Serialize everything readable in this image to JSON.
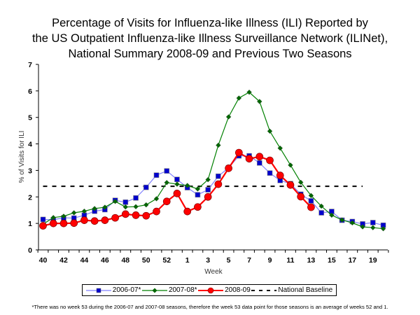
{
  "chart_data": {
    "type": "line",
    "title": [
      "Percentage of Visits for Influenza-like Illness (ILI) Reported by",
      "the US Outpatient Influenza-like Illness Surveillance Network (ILINet),",
      "National Summary 2008-09 and Previous Two Seasons"
    ],
    "xlabel": "Week",
    "ylabel": "% of Visits for ILI",
    "ylim": [
      0,
      7
    ],
    "yticks": [
      0,
      1,
      2,
      3,
      4,
      5,
      6,
      7
    ],
    "x": [
      "40",
      "41",
      "42",
      "43",
      "44",
      "45",
      "46",
      "47",
      "48",
      "49",
      "50",
      "51",
      "52",
      "53",
      "1",
      "2",
      "3",
      "4",
      "5",
      "6",
      "7",
      "8",
      "9",
      "10",
      "11",
      "12",
      "13",
      "14",
      "15",
      "16",
      "17",
      "18",
      "19",
      "20"
    ],
    "xtick_labels": [
      "40",
      "42",
      "44",
      "46",
      "48",
      "50",
      "52",
      "1",
      "3",
      "5",
      "7",
      "9",
      "11",
      "13",
      "15",
      "17",
      "19"
    ],
    "series": [
      {
        "name": "2006-07*",
        "color": "#8080ff",
        "marker_color": "#0000cc",
        "marker": "square",
        "values": [
          1.15,
          1.14,
          1.21,
          1.2,
          1.31,
          1.46,
          1.52,
          1.87,
          1.8,
          1.96,
          2.36,
          2.82,
          2.98,
          2.66,
          2.35,
          2.08,
          2.27,
          2.78,
          3.1,
          3.55,
          3.55,
          3.28,
          2.9,
          2.62,
          2.5,
          2.1,
          1.85,
          1.4,
          1.45,
          1.12,
          1.07,
          0.98,
          1.03,
          0.93
        ]
      },
      {
        "name": "2007-08*",
        "color": "#008000",
        "marker_color": "#006600",
        "marker": "diamond",
        "values": [
          0.97,
          1.22,
          1.27,
          1.4,
          1.46,
          1.56,
          1.61,
          1.83,
          1.62,
          1.63,
          1.7,
          1.93,
          2.54,
          2.48,
          2.43,
          2.3,
          2.65,
          3.95,
          5.02,
          5.73,
          5.95,
          5.6,
          4.48,
          3.84,
          3.2,
          2.55,
          2.05,
          1.65,
          1.31,
          1.13,
          1.02,
          0.87,
          0.84,
          0.8
        ]
      },
      {
        "name": "2008-09",
        "color": "#ff0000",
        "marker_color": "#ff0000",
        "marker": "circle",
        "values": [
          0.91,
          1.0,
          1.0,
          1.01,
          1.12,
          1.09,
          1.12,
          1.21,
          1.35,
          1.31,
          1.29,
          1.45,
          1.83,
          2.13,
          1.45,
          1.62,
          2.0,
          2.48,
          3.08,
          3.67,
          3.44,
          3.52,
          3.38,
          2.81,
          2.45,
          2.01,
          1.61,
          null,
          null,
          null,
          null,
          null,
          null,
          null
        ]
      }
    ],
    "baseline": {
      "name": "National Baseline",
      "value": 2.4,
      "color": "#000000",
      "style": "dashed"
    },
    "legend_position": "bottom",
    "grid": false
  },
  "footnote": "*There was no week 53 during the 2006-07 and 2007-08 seasons, therefore the week 53 data point for those seasons is an average of weeks 52 and 1."
}
